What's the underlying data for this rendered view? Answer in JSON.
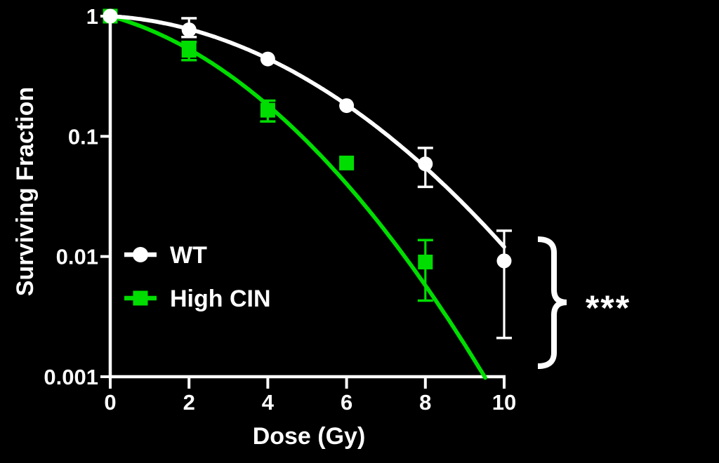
{
  "figure": {
    "background": "#000000",
    "accent_white": "#FFFFFF",
    "accent_green": "#00DD00"
  },
  "chart_data": {
    "type": "line",
    "title": "",
    "xlabel": "Dose (Gy)",
    "ylabel": "Surviving Fraction",
    "y_scale": "log10",
    "xlim": [
      0,
      10
    ],
    "ylim": [
      0.001,
      1
    ],
    "grid": false,
    "legend_position": "inside-lower-left",
    "x_ticks": [
      {
        "v": 0,
        "label": "0"
      },
      {
        "v": 2,
        "label": "2"
      },
      {
        "v": 4,
        "label": "4"
      },
      {
        "v": 6,
        "label": "6"
      },
      {
        "v": 8,
        "label": "8"
      },
      {
        "v": 10,
        "label": "10"
      }
    ],
    "y_ticks": [
      {
        "v": 1,
        "label": "1"
      },
      {
        "v": 0.1,
        "label": "0.1"
      },
      {
        "v": 0.01,
        "label": "0.01"
      },
      {
        "v": 0.001,
        "label": "0.001"
      }
    ],
    "series": [
      {
        "name": "High CIN",
        "color": "#00DD00",
        "marker": "square",
        "x": [
          0,
          2,
          4,
          6,
          8
        ],
        "y": [
          1.0,
          0.52,
          0.165,
          0.06,
          0.009
        ],
        "err_lo": [
          null,
          0.43,
          0.133,
          null,
          0.0043
        ],
        "err_hi": [
          null,
          0.61,
          0.198,
          null,
          0.0137
        ],
        "fit": {
          "model": "linear-quadratic",
          "alpha": 0.208,
          "beta": 0.0546,
          "dose_end": 9.52
        }
      },
      {
        "name": "WT",
        "color": "#FFFFFF",
        "marker": "circle",
        "x": [
          0,
          2,
          4,
          6,
          8,
          10
        ],
        "y": [
          1.0,
          0.77,
          0.44,
          0.18,
          0.059,
          0.0092
        ],
        "err_lo": [
          null,
          0.67,
          null,
          null,
          0.038,
          0.0021
        ],
        "err_hi": [
          null,
          0.96,
          null,
          null,
          0.08,
          0.0164
        ],
        "fit": {
          "model": "linear-quadratic",
          "alpha": 0.0445,
          "beta": 0.03975,
          "dose_end": 10
        }
      }
    ],
    "legend_order": [
      "WT",
      "High CIN"
    ],
    "annotation": {
      "significance": "***"
    }
  }
}
